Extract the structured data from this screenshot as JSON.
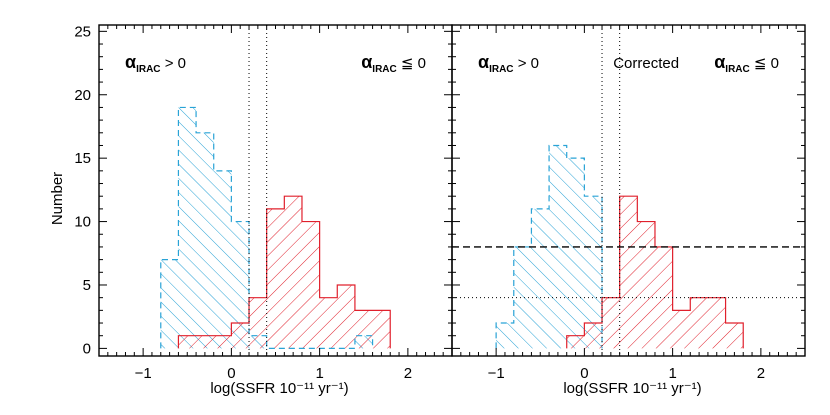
{
  "chart_data": [
    {
      "type": "bar",
      "panel": "left",
      "xlabel": "log(SSFR 10⁻¹¹ yr⁻¹)",
      "ylabel": "Number",
      "xlim": [
        -1.5,
        2.5
      ],
      "ylim": [
        -0.6,
        25.5
      ],
      "xticks": [
        -1,
        0,
        1,
        2
      ],
      "xtick_labels": [
        "−1",
        "0",
        "1",
        "2"
      ],
      "yticks": [
        0,
        5,
        10,
        15,
        20,
        25
      ],
      "ytick_labels": [
        "0",
        "5",
        "10",
        "15",
        "20",
        "25"
      ],
      "bin_width": 0.2,
      "series": [
        {
          "name": "αIRAC > 0",
          "color": "#29a3d6",
          "hatch": "backslash",
          "line": "dashed",
          "bin_lefts": [
            -0.8,
            -0.6,
            -0.4,
            -0.2,
            0.0,
            0.2,
            0.4,
            0.6,
            0.8,
            1.0,
            1.2,
            1.4
          ],
          "values": [
            7,
            19,
            17,
            14,
            10,
            1,
            0,
            0,
            0,
            0,
            0,
            1
          ]
        },
        {
          "name": "αIRAC ≦ 0",
          "color": "#e0202c",
          "hatch": "slash",
          "line": "solid",
          "bin_lefts": [
            -0.6,
            -0.4,
            -0.2,
            0.0,
            0.2,
            0.4,
            0.6,
            0.8,
            1.0,
            1.2,
            1.4,
            1.6
          ],
          "values": [
            1,
            1,
            1,
            2,
            4,
            11,
            12,
            10,
            4,
            5,
            3,
            3
          ]
        }
      ],
      "vlines": [
        {
          "x": 0.2,
          "style": "dotted"
        },
        {
          "x": 0.4,
          "style": "dotted"
        }
      ],
      "hlines": [],
      "annotations": {
        "left": {
          "symbol": "α",
          "sub": "IRAC",
          "relation": "> 0"
        },
        "right": {
          "symbol": "α",
          "sub": "IRAC",
          "relation": "≦ 0"
        },
        "middle": ""
      }
    },
    {
      "type": "bar",
      "panel": "right",
      "xlabel": "log(SSFR 10⁻¹¹ yr⁻¹)",
      "ylabel": "",
      "xlim": [
        -1.5,
        2.5
      ],
      "ylim": [
        -0.6,
        25.5
      ],
      "xticks": [
        -1,
        0,
        1,
        2
      ],
      "xtick_labels": [
        "−1",
        "0",
        "1",
        "2"
      ],
      "yticks": [
        0,
        5,
        10,
        15,
        20,
        25
      ],
      "ytick_labels": [],
      "bin_width": 0.2,
      "series": [
        {
          "name": "αIRAC > 0",
          "color": "#29a3d6",
          "hatch": "backslash",
          "line": "dashed",
          "bin_lefts": [
            -1.0,
            -0.8,
            -0.6,
            -0.4,
            -0.2,
            0.0
          ],
          "values": [
            2,
            8,
            11,
            16,
            15,
            12
          ]
        },
        {
          "name": "αIRAC ≦ 0",
          "color": "#e0202c",
          "hatch": "slash",
          "line": "solid",
          "bin_lefts": [
            -0.2,
            0.0,
            0.2,
            0.4,
            0.6,
            0.8,
            1.0,
            1.2,
            1.4,
            1.6
          ],
          "values": [
            1,
            2,
            4,
            12,
            10,
            8,
            3,
            4,
            4,
            2
          ]
        }
      ],
      "vlines": [
        {
          "x": 0.2,
          "style": "dotted"
        },
        {
          "x": 0.4,
          "style": "dotted"
        }
      ],
      "hlines": [
        {
          "y": 8,
          "style": "dashed"
        },
        {
          "y": 4,
          "style": "dotted"
        }
      ],
      "annotations": {
        "left": {
          "symbol": "α",
          "sub": "IRAC",
          "relation": "> 0"
        },
        "right": {
          "symbol": "α",
          "sub": "IRAC",
          "relation": "≦ 0"
        },
        "middle": "Corrected"
      }
    }
  ]
}
